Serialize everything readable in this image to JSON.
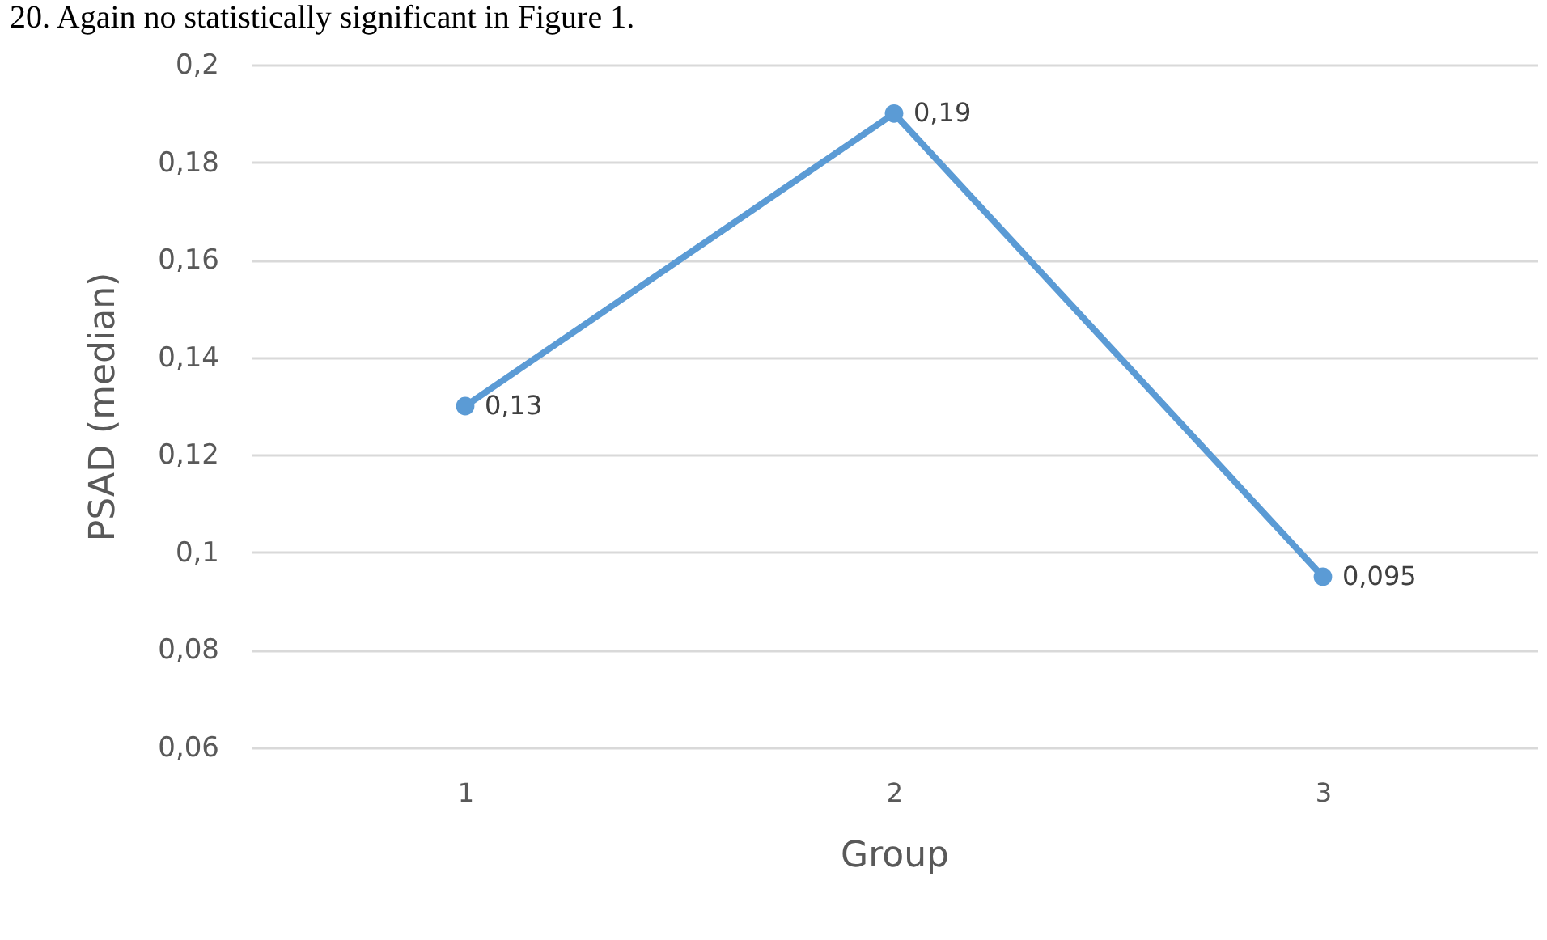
{
  "chart_data": {
    "type": "line",
    "xlabel": "Group",
    "ylabel": "PSAD (median)",
    "annotations": [
      "20. Again no statistically significant in Figure 1."
    ],
    "categories": [
      "1",
      "2",
      "3"
    ],
    "series": [
      {
        "color": "#5b9bd5",
        "values": [
          0.13,
          0.19,
          0.095
        ],
        "value_labels": [
          "0,13",
          "0,19",
          "0,095"
        ]
      }
    ],
    "ylim": [
      0.06,
      0.2
    ],
    "yticks": [
      {
        "value": 0.06,
        "label": "0,06"
      },
      {
        "value": 0.08,
        "label": "0,08"
      },
      {
        "value": 0.1,
        "label": "0,1"
      },
      {
        "value": 0.12,
        "label": "0,12"
      },
      {
        "value": 0.14,
        "label": "0,14"
      },
      {
        "value": 0.16,
        "label": "0,16"
      },
      {
        "value": 0.18,
        "label": "0,18"
      },
      {
        "value": 0.2,
        "label": "0,2"
      }
    ],
    "grid": "y",
    "marker": "circle",
    "line_style": "solid"
  }
}
